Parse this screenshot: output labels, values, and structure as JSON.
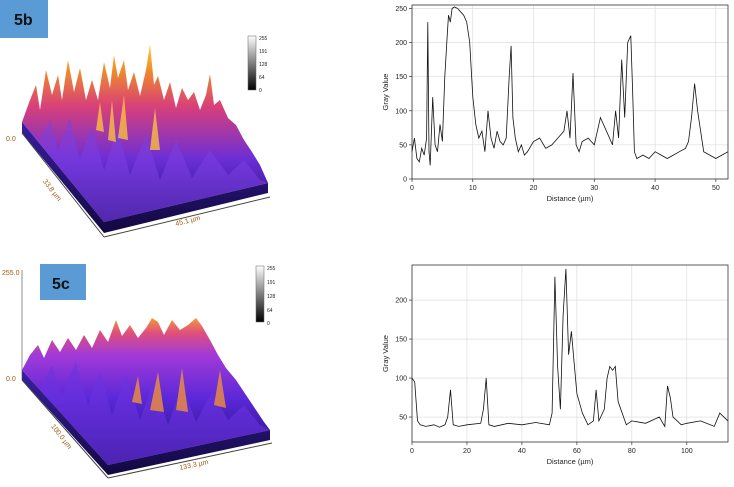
{
  "panels": [
    {
      "id": "5b",
      "label": "5b",
      "label_bg": "#5b9bd5",
      "surface": {
        "z_label": "0.0",
        "axis_x_label": "45.1 µm",
        "axis_y_label": "33.8 µm",
        "colorbar_ticks": [
          "255",
          "191",
          "128",
          "64",
          "0"
        ]
      }
    },
    {
      "id": "5c",
      "label": "5c",
      "label_bg": "#5b9bd5",
      "surface": {
        "z_top_label": "255.0",
        "z_label": "0.0",
        "axis_x_label": "133.3 µm",
        "axis_y_label": "100.0 µm",
        "colorbar_ticks": [
          "255",
          "191",
          "128",
          "64",
          "0"
        ]
      }
    }
  ],
  "chart_data": [
    {
      "type": "line",
      "panel": "5b",
      "xlabel": "Distance (µm)",
      "ylabel": "Gray Value",
      "xlim": [
        0,
        52
      ],
      "ylim": [
        0,
        255
      ],
      "xticks": [
        0,
        10,
        20,
        30,
        40,
        50
      ],
      "yticks": [
        0,
        50,
        100,
        150,
        200,
        250
      ],
      "grid": true,
      "series": [
        {
          "x": [
            0,
            0.4,
            0.8,
            1.2,
            1.6,
            2.0,
            2.4,
            2.6,
            2.8,
            3.0,
            3.4,
            3.8,
            4.2,
            4.6,
            5.0,
            5.4,
            5.8,
            6.0,
            6.3,
            6.6,
            7.0,
            7.5,
            8.0,
            8.5,
            9.0,
            9.5,
            10.0,
            10.5,
            11.0,
            11.5,
            12.0,
            12.5,
            13.0,
            13.5,
            14.0,
            14.5,
            15.0,
            15.5,
            16.0,
            16.3,
            16.6,
            17.0,
            17.5,
            18.0,
            18.5,
            19.0,
            20.0,
            21.0,
            22.0,
            23.0,
            24.0,
            25.0,
            25.5,
            26.0,
            26.5,
            27.0,
            27.5,
            28.0,
            29.0,
            30.0,
            31.0,
            32.0,
            33.0,
            33.5,
            34.0,
            34.5,
            35.0,
            35.5,
            36.0,
            36.3,
            36.6,
            37.0,
            38.0,
            39.0,
            40.0,
            41.0,
            42.0,
            43.0,
            44.0,
            45.0,
            45.5,
            46.0,
            46.5,
            47.0,
            48.0,
            49.0,
            50.0,
            51.0,
            52.0
          ],
          "y": [
            40,
            60,
            30,
            25,
            45,
            35,
            60,
            230,
            40,
            20,
            120,
            50,
            40,
            80,
            55,
            150,
            210,
            240,
            230,
            250,
            252,
            250,
            245,
            240,
            230,
            200,
            120,
            80,
            60,
            70,
            40,
            100,
            60,
            45,
            70,
            55,
            50,
            60,
            150,
            195,
            90,
            60,
            40,
            50,
            35,
            40,
            55,
            60,
            45,
            50,
            60,
            70,
            100,
            60,
            155,
            50,
            40,
            55,
            60,
            50,
            90,
            70,
            50,
            100,
            60,
            175,
            90,
            200,
            210,
            130,
            40,
            30,
            35,
            30,
            40,
            35,
            30,
            35,
            40,
            45,
            55,
            90,
            140,
            100,
            40,
            35,
            30,
            35,
            40
          ]
        }
      ]
    },
    {
      "type": "line",
      "panel": "5c",
      "xlabel": "Distance (µm)",
      "ylabel": "Gray Value",
      "xlim": [
        0,
        115
      ],
      "ylim": [
        18,
        245
      ],
      "xticks": [
        0,
        20,
        40,
        60,
        80,
        100
      ],
      "yticks": [
        50,
        100,
        150,
        200
      ],
      "grid": true,
      "series": [
        {
          "x": [
            0,
            1,
            2,
            3,
            5,
            8,
            10,
            12,
            13,
            14,
            15,
            17,
            20,
            25,
            26,
            27,
            28,
            30,
            35,
            40,
            45,
            50,
            51,
            52,
            53,
            54,
            55,
            56,
            57,
            58,
            59,
            60,
            62,
            64,
            66,
            67,
            68,
            70,
            71,
            72,
            73,
            74,
            75,
            78,
            80,
            85,
            90,
            92,
            93,
            94,
            95,
            98,
            100,
            105,
            110,
            112,
            115
          ],
          "y": [
            100,
            95,
            45,
            40,
            38,
            40,
            37,
            40,
            50,
            85,
            40,
            38,
            40,
            42,
            60,
            100,
            40,
            38,
            42,
            40,
            43,
            40,
            55,
            230,
            115,
            60,
            180,
            240,
            130,
            160,
            120,
            80,
            55,
            40,
            45,
            85,
            45,
            60,
            100,
            115,
            110,
            115,
            70,
            40,
            45,
            42,
            50,
            38,
            90,
            75,
            50,
            40,
            42,
            45,
            38,
            55,
            45
          ]
        }
      ]
    }
  ]
}
